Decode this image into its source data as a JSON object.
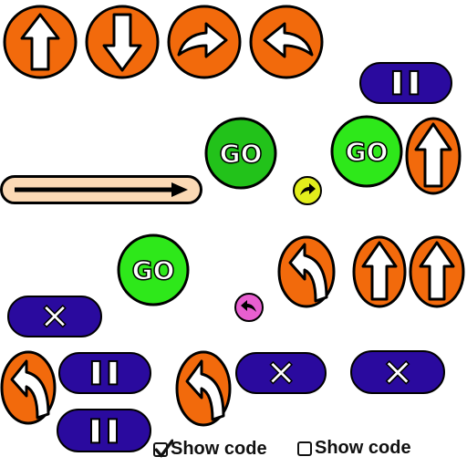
{
  "top_arrows": [
    {
      "icon": "arrow-up-icon"
    },
    {
      "icon": "arrow-down-icon"
    },
    {
      "icon": "turn-right-icon"
    },
    {
      "icon": "turn-left-icon"
    }
  ],
  "go_buttons": [
    {
      "label": "GO"
    },
    {
      "label": "GO"
    },
    {
      "label": "GO"
    }
  ],
  "colors": {
    "orange": "#f26a0c",
    "green": "#22c21a",
    "pill_blue": "#2a0a9e",
    "slider_fill": "#fbd9b5",
    "yellow_dot": "#e2ee1c",
    "pink_dot": "#e85fd0"
  },
  "controls": {
    "show_code_checked_label": "Show code",
    "show_code_unchecked_label": "Show code",
    "show_code_checked": true,
    "show_code_unchecked": false
  }
}
